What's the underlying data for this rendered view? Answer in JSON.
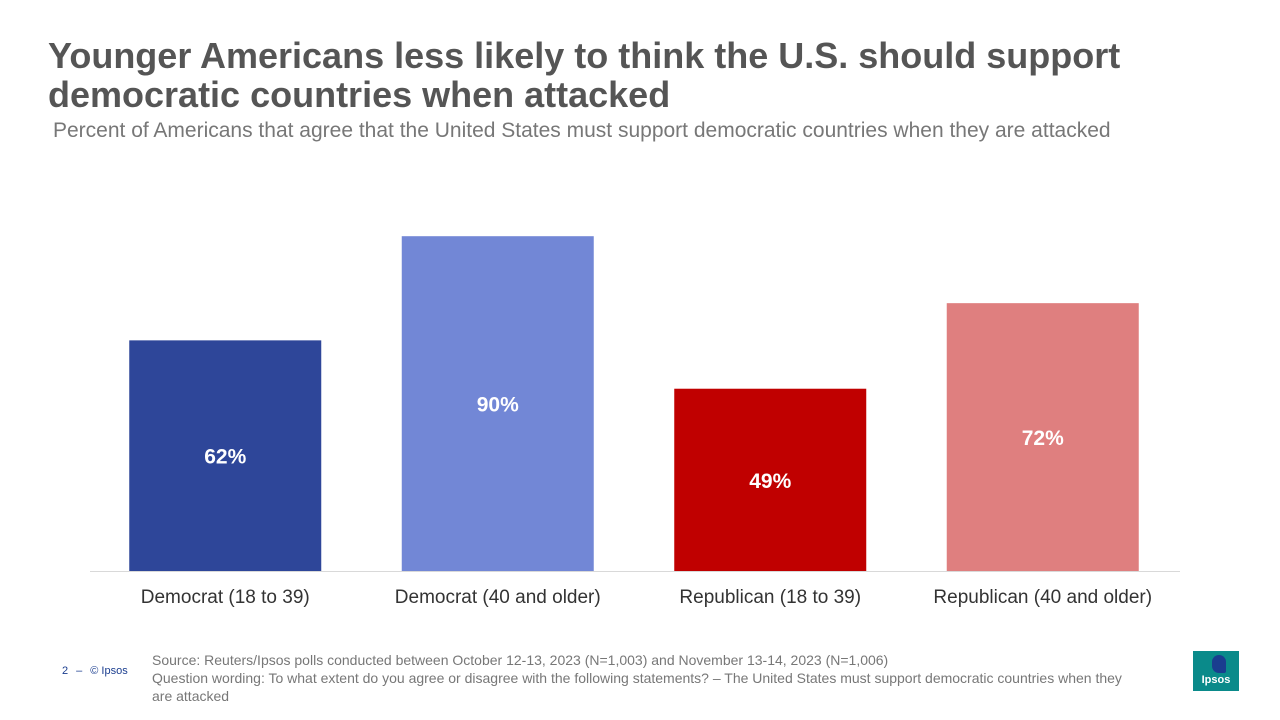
{
  "header": {
    "title": "Younger Americans less likely to think the U.S. should support democratic countries when attacked",
    "subtitle": "Percent of Americans that agree that the United States must support democratic countries when they are attacked"
  },
  "chart_data": {
    "type": "bar",
    "title": "Younger Americans less likely to think the U.S. should support democratic countries when attacked",
    "categories": [
      "Democrat (18 to 39)",
      "Democrat (40 and older)",
      "Republican (18 to 39)",
      "Republican (40 and older)"
    ],
    "values": [
      62,
      90,
      49,
      72
    ],
    "value_labels": [
      "62%",
      "90%",
      "49%",
      "72%"
    ],
    "colors": [
      "#2e4699",
      "#7287d6",
      "#c00000",
      "#df7f7f"
    ],
    "xlabel": "",
    "ylabel": "",
    "ylim": [
      0,
      100
    ],
    "grid": false,
    "legend": "none"
  },
  "footer": {
    "page_number": "2",
    "page_separator": "–",
    "copyright": "© Ipsos",
    "source": "Source: Reuters/Ipsos polls conducted between October 12-13, 2023 (N=1,003) and November 13-14, 2023 (N=1,006)",
    "question": "Question wording: To what extent do you agree or disagree with the following statements? – The United States must support democratic countries when they are attacked",
    "logo_text": "Ipsos"
  },
  "colors": {
    "title": "#555555",
    "subtitle": "#777777",
    "axis": "#d9d9d9",
    "brand": "#0a8a8a"
  }
}
